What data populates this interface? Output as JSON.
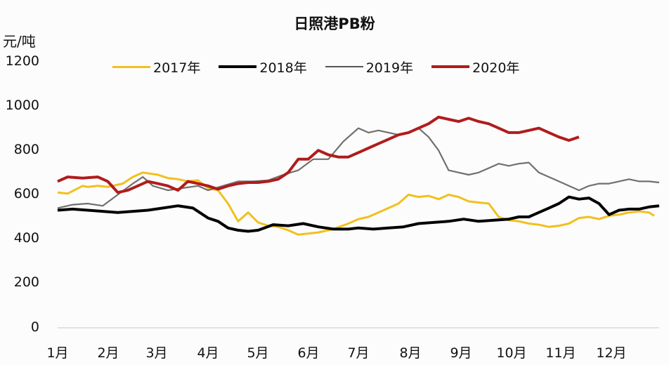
{
  "chart": {
    "title": "日照港PB粉",
    "unit_label": "元/吨",
    "y_ticks": [
      "1200",
      "1000",
      "800",
      "600",
      "400",
      "200",
      "0"
    ],
    "x_ticks": [
      "1月",
      "2月",
      "3月",
      "4月",
      "5月",
      "6月",
      "7月",
      "8月",
      "9月",
      "10月",
      "11月",
      "12月"
    ],
    "legend": [
      {
        "label": "2017年",
        "color": "#F2C01C",
        "width": 3
      },
      {
        "label": "2018年",
        "color": "#000000",
        "width": 4
      },
      {
        "label": "2019年",
        "color": "#707070",
        "width": 2
      },
      {
        "label": "2020年",
        "color": "#B01C1C",
        "width": 4
      }
    ]
  },
  "chart_data": {
    "type": "line",
    "title": "日照港PB粉",
    "xlabel": "",
    "ylabel": "元/吨",
    "ylim": [
      0,
      1200
    ],
    "y_ticks": [
      0,
      200,
      400,
      600,
      800,
      1000,
      1200
    ],
    "categories": [
      "1月",
      "2月",
      "3月",
      "4月",
      "5月",
      "6月",
      "7月",
      "8月",
      "9月",
      "10月",
      "11月",
      "12月"
    ],
    "grid": false,
    "legend_position": "top",
    "x_unit": "month offset from Jan 1 (0-12)",
    "series": [
      {
        "name": "2017年",
        "color": "#F2C01C",
        "x": [
          0,
          0.2,
          0.5,
          0.6,
          0.8,
          1.0,
          1.3,
          1.5,
          1.7,
          2.0,
          2.2,
          2.4,
          2.6,
          2.8,
          3.0,
          3.2,
          3.4,
          3.6,
          3.8,
          4.0,
          4.2,
          4.4,
          4.6,
          4.8,
          5.0,
          5.2,
          5.5,
          5.8,
          6.0,
          6.2,
          6.4,
          6.6,
          6.8,
          7.0,
          7.2,
          7.4,
          7.6,
          7.8,
          8.0,
          8.2,
          8.4,
          8.6,
          8.8,
          9.0,
          9.2,
          9.4,
          9.6,
          9.8,
          10.0,
          10.2,
          10.4,
          10.6,
          10.8,
          11.0,
          11.2,
          11.4,
          11.6,
          11.8,
          11.9
        ],
        "values": [
          610,
          605,
          640,
          635,
          640,
          635,
          650,
          680,
          700,
          690,
          675,
          670,
          660,
          665,
          630,
          620,
          560,
          480,
          520,
          475,
          460,
          455,
          440,
          420,
          425,
          430,
          445,
          470,
          490,
          500,
          520,
          540,
          560,
          600,
          590,
          595,
          580,
          600,
          590,
          570,
          565,
          560,
          500,
          485,
          480,
          470,
          465,
          455,
          460,
          470,
          495,
          500,
          490,
          505,
          510,
          520,
          525,
          520,
          505
        ]
      },
      {
        "name": "2018年",
        "color": "#000000",
        "x": [
          0,
          0.3,
          0.6,
          0.9,
          1.2,
          1.5,
          1.8,
          2.1,
          2.4,
          2.7,
          3.0,
          3.2,
          3.4,
          3.6,
          3.8,
          4.0,
          4.3,
          4.6,
          4.9,
          5.2,
          5.5,
          5.8,
          6.0,
          6.3,
          6.6,
          6.9,
          7.2,
          7.5,
          7.8,
          8.1,
          8.4,
          8.7,
          9.0,
          9.2,
          9.4,
          9.6,
          9.8,
          10.0,
          10.2,
          10.4,
          10.6,
          10.8,
          11.0,
          11.2,
          11.4,
          11.6,
          11.8,
          12.0
        ],
        "values": [
          530,
          535,
          530,
          525,
          520,
          525,
          530,
          540,
          550,
          540,
          495,
          480,
          450,
          440,
          435,
          440,
          465,
          460,
          470,
          455,
          445,
          445,
          450,
          445,
          450,
          455,
          470,
          475,
          480,
          490,
          480,
          485,
          490,
          500,
          500,
          520,
          540,
          560,
          590,
          580,
          585,
          560,
          510,
          530,
          535,
          535,
          545,
          550
        ]
      },
      {
        "name": "2019年",
        "color": "#707070",
        "x": [
          0,
          0.3,
          0.6,
          0.9,
          1.2,
          1.5,
          1.7,
          1.9,
          2.2,
          2.5,
          2.8,
          3.0,
          3.3,
          3.6,
          3.9,
          4.2,
          4.5,
          4.8,
          5.1,
          5.4,
          5.7,
          6.0,
          6.2,
          6.4,
          6.6,
          6.8,
          7.0,
          7.2,
          7.4,
          7.6,
          7.8,
          8.0,
          8.2,
          8.4,
          8.6,
          8.8,
          9.0,
          9.2,
          9.4,
          9.6,
          9.8,
          10.0,
          10.2,
          10.4,
          10.6,
          10.8,
          11.0,
          11.2,
          11.4,
          11.6,
          11.8,
          12.0
        ],
        "values": [
          540,
          555,
          560,
          550,
          600,
          650,
          680,
          640,
          620,
          630,
          640,
          620,
          640,
          660,
          660,
          665,
          690,
          710,
          760,
          760,
          840,
          900,
          880,
          890,
          880,
          870,
          880,
          900,
          860,
          800,
          710,
          700,
          690,
          700,
          720,
          740,
          730,
          740,
          745,
          700,
          680,
          660,
          640,
          620,
          640,
          650,
          650,
          660,
          670,
          660,
          660,
          655
        ]
      },
      {
        "name": "2020年",
        "color": "#B01C1C",
        "x": [
          0,
          0.2,
          0.5,
          0.8,
          1.0,
          1.2,
          1.4,
          1.6,
          1.8,
          2.0,
          2.2,
          2.4,
          2.6,
          2.8,
          3.0,
          3.2,
          3.4,
          3.6,
          3.8,
          4.0,
          4.2,
          4.4,
          4.6,
          4.8,
          5.0,
          5.2,
          5.4,
          5.6,
          5.8,
          6.0,
          6.2,
          6.4,
          6.6,
          6.8,
          7.0,
          7.2,
          7.4,
          7.6,
          7.8,
          8.0,
          8.2,
          8.4,
          8.6,
          8.8,
          9.0,
          9.2,
          9.4,
          9.6,
          9.8,
          10.0,
          10.2,
          10.4
        ],
        "values": [
          660,
          680,
          675,
          680,
          660,
          610,
          620,
          640,
          660,
          650,
          640,
          620,
          660,
          650,
          640,
          625,
          640,
          650,
          655,
          655,
          660,
          670,
          700,
          760,
          760,
          800,
          780,
          770,
          770,
          790,
          810,
          830,
          850,
          870,
          880,
          900,
          920,
          950,
          940,
          930,
          945,
          930,
          920,
          900,
          880,
          880,
          890,
          900,
          880,
          860,
          845,
          860
        ]
      }
    ]
  }
}
